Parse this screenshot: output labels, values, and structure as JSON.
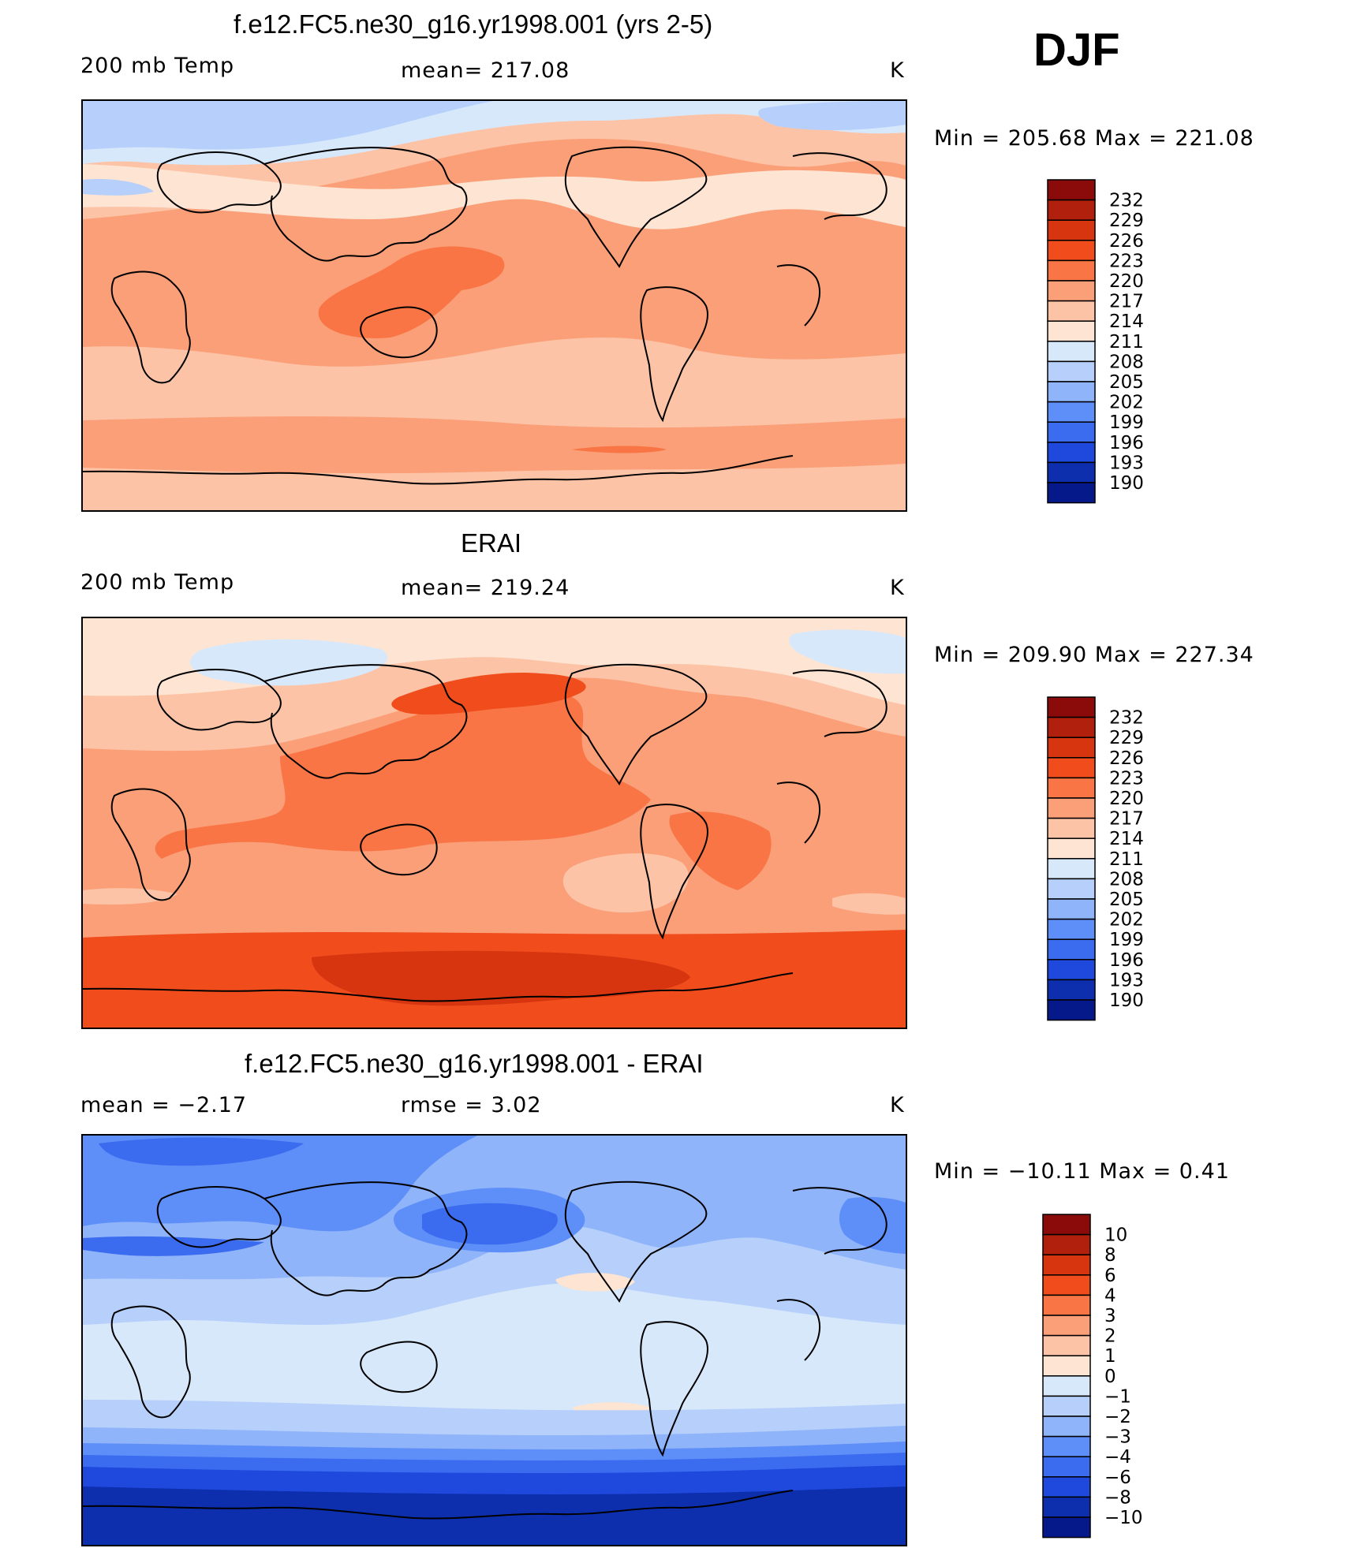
{
  "season": "DJF",
  "panels": [
    {
      "id": "model",
      "title": "f.e12.FC5.ne30_g16.yr1998.001 (yrs 2-5)",
      "left_label": "200 mb Temp",
      "center_label": "mean= 217.08",
      "units": "K",
      "minmax": "Min  =  205.68  Max  =  221.08",
      "colorbar": {
        "labels": [
          "232",
          "229",
          "226",
          "223",
          "220",
          "217",
          "214",
          "211",
          "208",
          "205",
          "202",
          "199",
          "196",
          "193",
          "190"
        ],
        "colors": [
          "#8b0a0a",
          "#b0200c",
          "#d63510",
          "#f04c1c",
          "#f97545",
          "#fb9f78",
          "#fcc3a6",
          "#fee4d2",
          "#d8e8fb",
          "#b6d0fb",
          "#8fb4fa",
          "#5e8ef7",
          "#3b6cf0",
          "#1e49dc",
          "#0d2fae",
          "#06198a"
        ]
      },
      "field": {
        "background": "#fcc3a6",
        "bands": [
          {
            "level": "217-220",
            "color": "#fb9f78"
          },
          {
            "level": "220-223",
            "color": "#f97545"
          },
          {
            "level": "211-214",
            "color": "#fee4d2"
          },
          {
            "level": "208-211",
            "color": "#d8e8fb"
          },
          {
            "level": "205-208",
            "color": "#b6d0fb"
          }
        ]
      }
    },
    {
      "id": "obs",
      "title": "ERAI",
      "left_label": "200 mb Temp",
      "center_label": "mean= 219.24",
      "units": "K",
      "minmax": "Min  =  209.90  Max  =  227.34",
      "colorbar": {
        "labels": [
          "232",
          "229",
          "226",
          "223",
          "220",
          "217",
          "214",
          "211",
          "208",
          "205",
          "202",
          "199",
          "196",
          "193",
          "190"
        ],
        "colors": [
          "#8b0a0a",
          "#b0200c",
          "#d63510",
          "#f04c1c",
          "#f97545",
          "#fb9f78",
          "#fcc3a6",
          "#fee4d2",
          "#d8e8fb",
          "#b6d0fb",
          "#8fb4fa",
          "#5e8ef7",
          "#3b6cf0",
          "#1e49dc",
          "#0d2fae",
          "#06198a"
        ]
      },
      "field": {
        "background": "#fb9f78",
        "bands": [
          {
            "level": "214-217",
            "color": "#fcc3a6"
          },
          {
            "level": "211-214",
            "color": "#fee4d2"
          },
          {
            "level": "208-211",
            "color": "#d8e8fb"
          },
          {
            "level": "220-223",
            "color": "#f97545"
          },
          {
            "level": "223-226",
            "color": "#f04c1c"
          },
          {
            "level": "226-229",
            "color": "#d63510"
          }
        ]
      }
    },
    {
      "id": "diff",
      "title": "f.e12.FC5.ne30_g16.yr1998.001 - ERAI",
      "left_label": "mean  =    −2.17",
      "center_label": "rmse  =     3.02",
      "units": "K",
      "minmax": "Min  =  −10.11  Max  =     0.41",
      "colorbar": {
        "labels": [
          "10",
          "8",
          "6",
          "4",
          "3",
          "2",
          "1",
          "0",
          "−1",
          "−2",
          "−3",
          "−4",
          "−6",
          "−8",
          "−10"
        ],
        "colors": [
          "#8b0a0a",
          "#b0200c",
          "#d63510",
          "#f04c1c",
          "#f97545",
          "#fb9f78",
          "#fcc3a6",
          "#fee4d2",
          "#d8e8fb",
          "#b6d0fb",
          "#8fb4fa",
          "#5e8ef7",
          "#3b6cf0",
          "#1e49dc",
          "#0d2fae",
          "#06198a"
        ]
      },
      "field": {
        "background": "#d8e8fb",
        "bands": [
          {
            "level": "0-1",
            "color": "#fee4d2"
          },
          {
            "level": "-2--1",
            "color": "#b6d0fb"
          },
          {
            "level": "-3--2",
            "color": "#8fb4fa"
          },
          {
            "level": "-4--3",
            "color": "#5e8ef7"
          },
          {
            "level": "-6--4",
            "color": "#3b6cf0"
          },
          {
            "level": "-8--6",
            "color": "#1e49dc"
          },
          {
            "level": "-10--8",
            "color": "#0d2fae"
          }
        ]
      }
    }
  ]
}
